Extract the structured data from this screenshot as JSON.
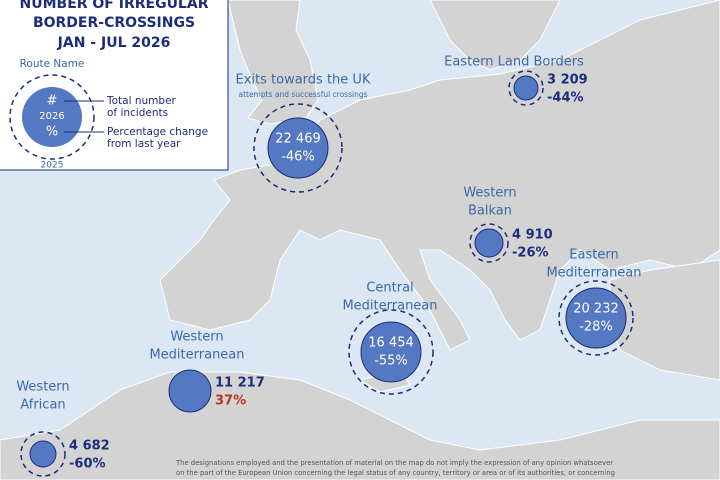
{
  "legend": {
    "title_lines": [
      "NUMBER OF IRREGULAR",
      "BORDER-CROSSINGS",
      "JAN - JUL  2026"
    ],
    "route_name": "Route Name",
    "symbol_count": "#",
    "symbol_year": "2026",
    "symbol_percent": "%",
    "outer_year": "2025",
    "count_desc": [
      "Total number",
      "of incidents"
    ],
    "change_desc": [
      "Percentage change",
      "from last year"
    ]
  },
  "routes": [
    {
      "name_lines": [
        "Exits towards the UK"
      ],
      "subtitle": "attempts and successful crossings",
      "count": "22 469",
      "change": "-46%"
    },
    {
      "name_lines": [
        "Eastern Land Borders"
      ],
      "count": "3 209",
      "change": "-44%"
    },
    {
      "name_lines": [
        "Western",
        "Balkan"
      ],
      "count": "4 910",
      "change": "-26%"
    },
    {
      "name_lines": [
        "Eastern",
        "Mediterranean"
      ],
      "count": "20 232",
      "change": "-28%"
    },
    {
      "name_lines": [
        "Central",
        "Mediterranean"
      ],
      "count": "16 454",
      "change": "-55%"
    },
    {
      "name_lines": [
        "Western",
        "Mediterranean"
      ],
      "count": "11 217",
      "change": "37%"
    },
    {
      "name_lines": [
        "Western",
        "African"
      ],
      "count": "4 682",
      "change": "-60%"
    }
  ],
  "disclaimer": [
    "The designations employed and the presentation of material on the map do not imply the expression of any opinion whatsoever",
    "on the part of the European Union concerning the legal status of any country, territory or area or of its authorities, or concerning"
  ]
}
